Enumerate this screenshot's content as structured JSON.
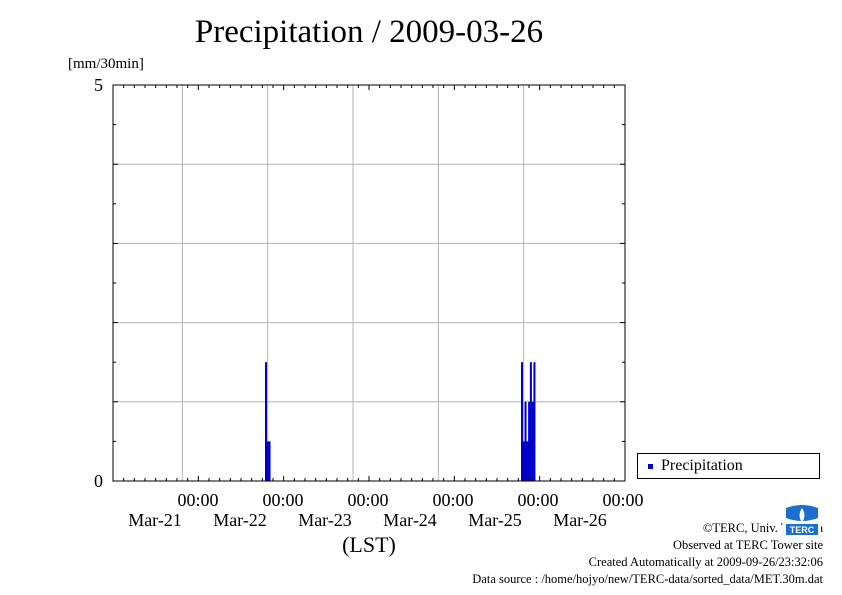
{
  "chart_data": {
    "type": "bar",
    "title": "Precipitation / 2009-03-26",
    "ylabel": "[mm/30min]",
    "xlabel": "(LST)",
    "ylim": [
      0,
      5
    ],
    "y_ticks": [
      "5",
      "0"
    ],
    "x_range": [
      "2009-03-21 00:00",
      "2009-03-27 00:00"
    ],
    "x_ticks": [
      {
        "time": "00:00",
        "date": "Mar-21"
      },
      {
        "time": "00:00",
        "date": "Mar-22"
      },
      {
        "time": "00:00",
        "date": "Mar-23"
      },
      {
        "time": "00:00",
        "date": "Mar-24"
      },
      {
        "time": "00:00",
        "date": "Mar-25"
      },
      {
        "time": "00:00",
        "date": "Mar-26"
      }
    ],
    "grid": true,
    "legend_position": "right",
    "series": [
      {
        "name": "Precipitation",
        "color": "#0000cc",
        "points": [
          {
            "t": "2009-03-22 23:30",
            "v": 1.5
          },
          {
            "t": "2009-03-23 00:00",
            "v": 0.5
          },
          {
            "t": "2009-03-23 00:30",
            "v": 0.5
          },
          {
            "t": "2009-03-25 23:30",
            "v": 1.5
          },
          {
            "t": "2009-03-26 00:00",
            "v": 0.5
          },
          {
            "t": "2009-03-26 00:30",
            "v": 1.0
          },
          {
            "t": "2009-03-26 00:30",
            "v": 0.5
          },
          {
            "t": "2009-03-26 01:00",
            "v": 0.5
          },
          {
            "t": "2009-03-26 01:30",
            "v": 1.0
          },
          {
            "t": "2009-03-26 01:30",
            "v": 0.5
          },
          {
            "t": "2009-03-26 02:00",
            "v": 1.5
          },
          {
            "t": "2009-03-26 02:30",
            "v": 1.0
          },
          {
            "t": "2009-03-26 03:00",
            "v": 1.5
          }
        ]
      }
    ]
  },
  "footer": {
    "copyright": "©TERC, Univ. Tsukuba",
    "observed": "Observed at TERC Tower site",
    "created": "Created Automatically at 2009-09-26/23:32:06",
    "source": "Data source : /home/hojyo/new/TERC-data/sorted_data/MET.30m.dat"
  },
  "logo": {
    "text": "TERC",
    "color": "#1a6fd0"
  }
}
